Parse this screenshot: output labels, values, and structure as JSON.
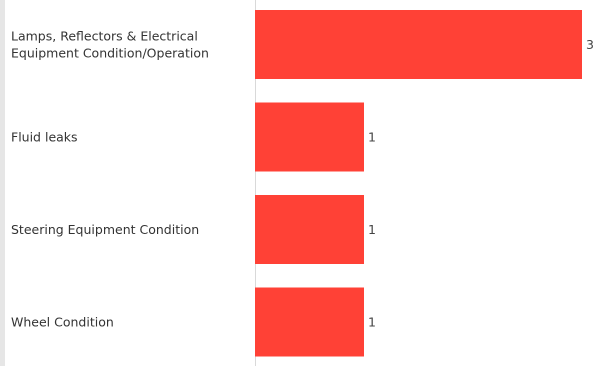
{
  "chart_data": {
    "type": "bar",
    "orientation": "horizontal",
    "title": "",
    "xlabel": "",
    "ylabel": "",
    "categories": [
      [
        "Lamps, Reflectors & Electrical",
        "Equipment Condition/Operation"
      ],
      [
        "Fluid leaks"
      ],
      [
        "Steering Equipment Condition"
      ],
      [
        "Wheel Condition"
      ]
    ],
    "values": [
      3,
      1,
      1,
      1
    ],
    "xlim": [
      0,
      3
    ],
    "grid": false,
    "legend": "none",
    "bar_color": "#ff4136"
  }
}
